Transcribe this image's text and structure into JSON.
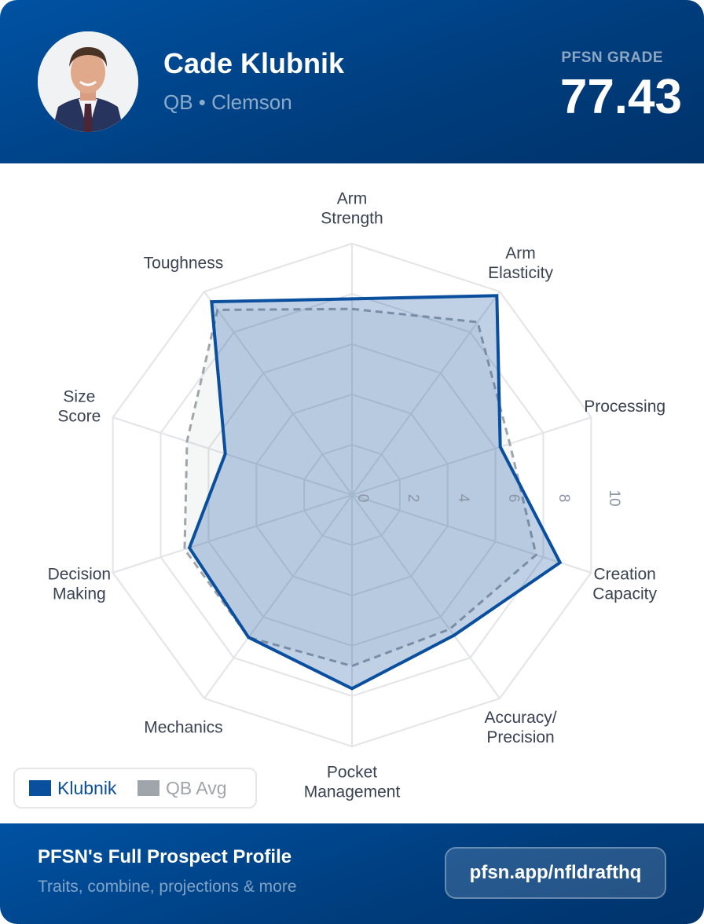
{
  "header": {
    "player_name": "Cade Klubnik",
    "subtitle": "QB • Clemson",
    "grade_label": "PFSN GRADE",
    "grade_value": "77.43"
  },
  "legend": {
    "player": "Klubnik",
    "avg": "QB Avg"
  },
  "footer": {
    "title": "PFSN's Full Prospect Profile",
    "subtitle": "Traits, combine, projections & more",
    "link_label": "pfsn.app/nfldrafthq"
  },
  "colors": {
    "player": "#0a4f9e",
    "player_fill": "#bdd0e5",
    "avg": "#a0a4ab"
  },
  "chart_data": {
    "type": "radar",
    "categories": [
      "Arm Strength",
      "Arm Elasticity",
      "Processing",
      "Creation Capacity",
      "Accuracy/ Precision",
      "Pocket Management",
      "Mechanics",
      "Decision Making",
      "Size Score",
      "Toughness"
    ],
    "series": [
      {
        "name": "Klubnik",
        "values": [
          7.8,
          9.8,
          6.2,
          8.7,
          6.9,
          7.7,
          7.0,
          6.8,
          5.3,
          9.5
        ]
      },
      {
        "name": "QB Avg",
        "values": [
          7.4,
          8.5,
          6.6,
          7.7,
          6.6,
          6.8,
          7.0,
          7.0,
          6.9,
          9.1
        ]
      }
    ],
    "rlim": [
      0,
      10
    ],
    "ticks": [
      "0",
      "2",
      "4",
      "6",
      "8",
      "10"
    ],
    "grid": true,
    "legend_position": "bottom-left"
  }
}
